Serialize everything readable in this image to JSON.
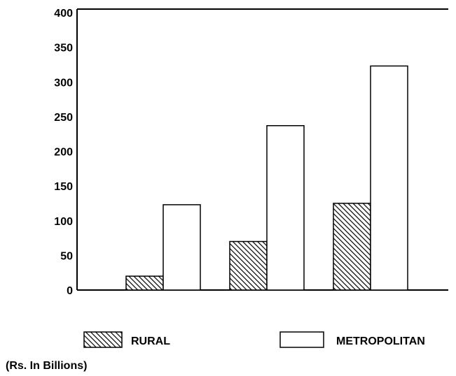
{
  "chart_data": {
    "type": "bar",
    "categories": [
      "",
      "",
      ""
    ],
    "series": [
      {
        "name": "RURAL",
        "values": [
          20,
          70,
          125
        ],
        "pattern": "hatched"
      },
      {
        "name": "METROPOLITAN",
        "values": [
          123,
          237,
          323
        ],
        "pattern": "plain"
      }
    ],
    "ylim": [
      0,
      400
    ],
    "yticks": [
      "0",
      "50",
      "100",
      "150",
      "200",
      "250",
      "300",
      "350",
      "400"
    ],
    "grid": false,
    "legend": "bottom",
    "note": "(Rs. In Billions)"
  },
  "colors": {
    "line": "#000000",
    "fill": "#ffffff"
  }
}
